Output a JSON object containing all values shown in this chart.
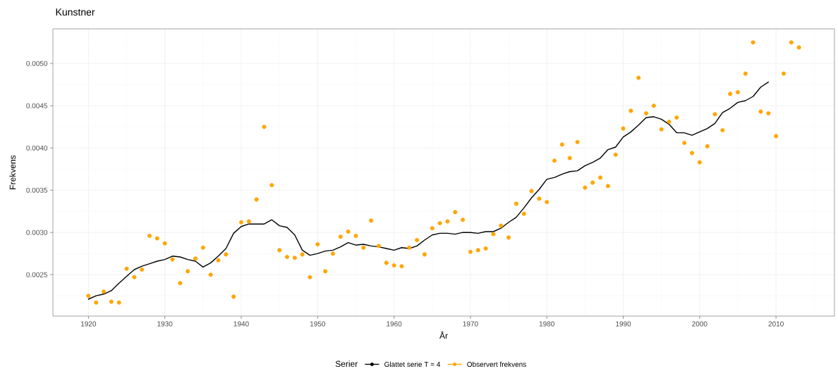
{
  "chart_data": {
    "type": "scatter",
    "title": "Kunstner",
    "xlabel": "År",
    "ylabel": "Frekvens",
    "legend_title": "Serier",
    "xlim": [
      1915.35,
      2017.65
    ],
    "ylim": [
      0.00201,
      0.00541
    ],
    "xticks": [
      1920,
      1930,
      1940,
      1950,
      1960,
      1970,
      1980,
      1990,
      2000,
      2010
    ],
    "yticks": [
      0.0025,
      {
        "value": 0.003,
        "label": "0.0030"
      },
      0.0035,
      {
        "value": 0.004,
        "label": "0.0040"
      },
      0.0045,
      {
        "value": 0.005,
        "label": "0.0050"
      }
    ],
    "grid": true,
    "legend": "bottom",
    "series": [
      {
        "name": "Glattet serie T = 4",
        "type": "line",
        "color": "#000000",
        "marker": "none",
        "x": [
          1920,
          1921,
          1922,
          1923,
          1924,
          1925,
          1926,
          1927,
          1928,
          1929,
          1930,
          1931,
          1932,
          1933,
          1934,
          1935,
          1936,
          1937,
          1938,
          1939,
          1940,
          1941,
          1942,
          1943,
          1944,
          1945,
          1946,
          1947,
          1948,
          1949,
          1950,
          1951,
          1952,
          1953,
          1954,
          1955,
          1956,
          1957,
          1958,
          1959,
          1960,
          1961,
          1962,
          1963,
          1964,
          1965,
          1966,
          1967,
          1968,
          1969,
          1970,
          1971,
          1972,
          1973,
          1974,
          1975,
          1976,
          1977,
          1978,
          1979,
          1980,
          1981,
          1982,
          1983,
          1984,
          1985,
          1986,
          1987,
          1988,
          1989,
          1990,
          1991,
          1992,
          1993,
          1994,
          1995,
          1996,
          1997,
          1998,
          1999,
          2000,
          2001,
          2002,
          2003,
          2004,
          2005,
          2006,
          2007,
          2008,
          2009
        ],
        "values": [
          0.00221,
          0.00225,
          0.00227,
          0.00231,
          0.0024,
          0.00248,
          0.00256,
          0.0026,
          0.00263,
          0.00266,
          0.00268,
          0.00272,
          0.00271,
          0.00268,
          0.00266,
          0.00259,
          0.00264,
          0.00272,
          0.00281,
          0.00299,
          0.00307,
          0.0031,
          0.0031,
          0.0031,
          0.00315,
          0.00308,
          0.00306,
          0.00297,
          0.00279,
          0.00273,
          0.00275,
          0.00278,
          0.00279,
          0.00283,
          0.00288,
          0.00285,
          0.00286,
          0.00284,
          0.00283,
          0.00281,
          0.00279,
          0.00282,
          0.00281,
          0.00284,
          0.00291,
          0.00297,
          0.00299,
          0.00299,
          0.00298,
          0.003,
          0.003,
          0.00299,
          0.00301,
          0.00301,
          0.00305,
          0.00312,
          0.00318,
          0.00329,
          0.00341,
          0.00351,
          0.00363,
          0.00365,
          0.00369,
          0.00372,
          0.00373,
          0.00379,
          0.00383,
          0.00388,
          0.00398,
          0.00401,
          0.00413,
          0.00419,
          0.00427,
          0.00436,
          0.00437,
          0.00434,
          0.00428,
          0.00418,
          0.00418,
          0.00415,
          0.00419,
          0.00423,
          0.00429,
          0.00442,
          0.00447,
          0.00454,
          0.00456,
          0.00461,
          0.00472,
          0.00478
        ]
      },
      {
        "name": "Observert frekvens",
        "color": "#ffa500",
        "marker": "circle",
        "x": [
          1920,
          1921,
          1922,
          1923,
          1924,
          1925,
          1926,
          1927,
          1928,
          1929,
          1930,
          1931,
          1932,
          1933,
          1934,
          1935,
          1936,
          1937,
          1938,
          1939,
          1940,
          1941,
          1942,
          1943,
          1944,
          1945,
          1946,
          1947,
          1948,
          1949,
          1950,
          1951,
          1952,
          1953,
          1954,
          1955,
          1956,
          1957,
          1958,
          1959,
          1960,
          1961,
          1962,
          1963,
          1964,
          1965,
          1966,
          1967,
          1968,
          1969,
          1970,
          1971,
          1972,
          1973,
          1974,
          1975,
          1976,
          1977,
          1978,
          1979,
          1980,
          1981,
          1982,
          1983,
          1984,
          1985,
          1986,
          1987,
          1988,
          1989,
          1990,
          1991,
          1992,
          1993,
          1994,
          1995,
          1996,
          1997,
          1998,
          1999,
          2000,
          2001,
          2002,
          2003,
          2004,
          2005,
          2006,
          2007,
          2008,
          2009,
          2010,
          2011,
          2012,
          2013
        ],
        "values": [
          0.00225,
          0.00217,
          0.0023,
          0.00218,
          0.00217,
          0.00257,
          0.00247,
          0.00256,
          0.00296,
          0.00293,
          0.00287,
          0.00268,
          0.0024,
          0.00254,
          0.00269,
          0.00282,
          0.0025,
          0.00267,
          0.00274,
          0.00224,
          0.00312,
          0.00313,
          0.00339,
          0.00425,
          0.00356,
          0.00279,
          0.00271,
          0.0027,
          0.00274,
          0.00247,
          0.00286,
          0.00254,
          0.00275,
          0.00295,
          0.00301,
          0.00296,
          0.00282,
          0.00314,
          0.00284,
          0.00264,
          0.00261,
          0.0026,
          0.00282,
          0.00291,
          0.00274,
          0.00305,
          0.00311,
          0.00313,
          0.00324,
          0.00315,
          0.00277,
          0.00279,
          0.00281,
          0.00298,
          0.00308,
          0.00294,
          0.00334,
          0.00322,
          0.00349,
          0.0034,
          0.00336,
          0.00385,
          0.00404,
          0.00388,
          0.00407,
          0.00353,
          0.00359,
          0.00365,
          0.00355,
          0.00392,
          0.00423,
          0.00444,
          0.00483,
          0.00441,
          0.0045,
          0.00422,
          0.00431,
          0.00436,
          0.00406,
          0.00394,
          0.00383,
          0.00402,
          0.0044,
          0.00421,
          0.00464,
          0.00466,
          0.00488,
          0.00525,
          0.00443,
          0.00441,
          0.00414,
          0.00488,
          0.00525,
          0.00519
        ]
      }
    ]
  }
}
